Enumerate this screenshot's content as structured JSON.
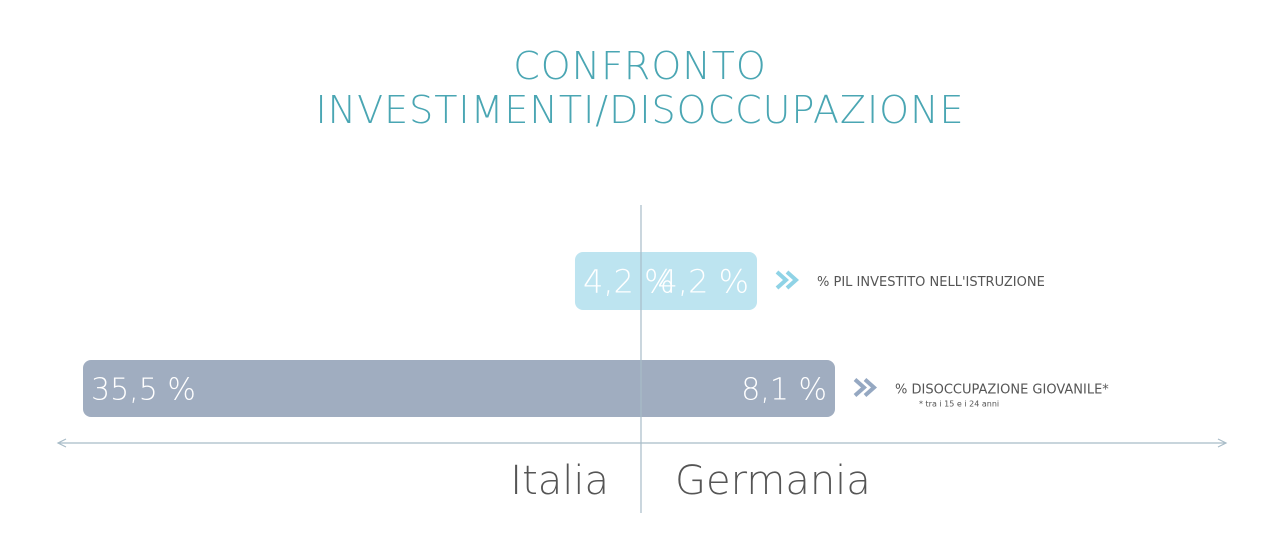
{
  "chart_data": {
    "type": "bar",
    "title_lines": [
      "CONFRONTO",
      "INVESTIMENTI/DISOCCUPAZIONE"
    ],
    "countries": [
      "Italia",
      "Germania"
    ],
    "series": [
      {
        "name": "% PIL INVESTITO NELL'ISTRUZIONE",
        "note": "",
        "values": [
          4.2,
          4.2
        ],
        "labels": [
          "4,2 %",
          "4,2 %"
        ],
        "color": "#bde4f0",
        "arrow_color": "#8fd3e6"
      },
      {
        "name": "% DISOCCUPAZIONE GIOVANILE*",
        "note": "* tra i 15 e i 24 anni",
        "values": [
          35.5,
          8.1
        ],
        "labels": [
          "35,5 %",
          "8,1 %"
        ],
        "color": "#a0adc0",
        "arrow_color": "#95a8c2"
      }
    ],
    "axis_color": "#a8bcc8"
  }
}
